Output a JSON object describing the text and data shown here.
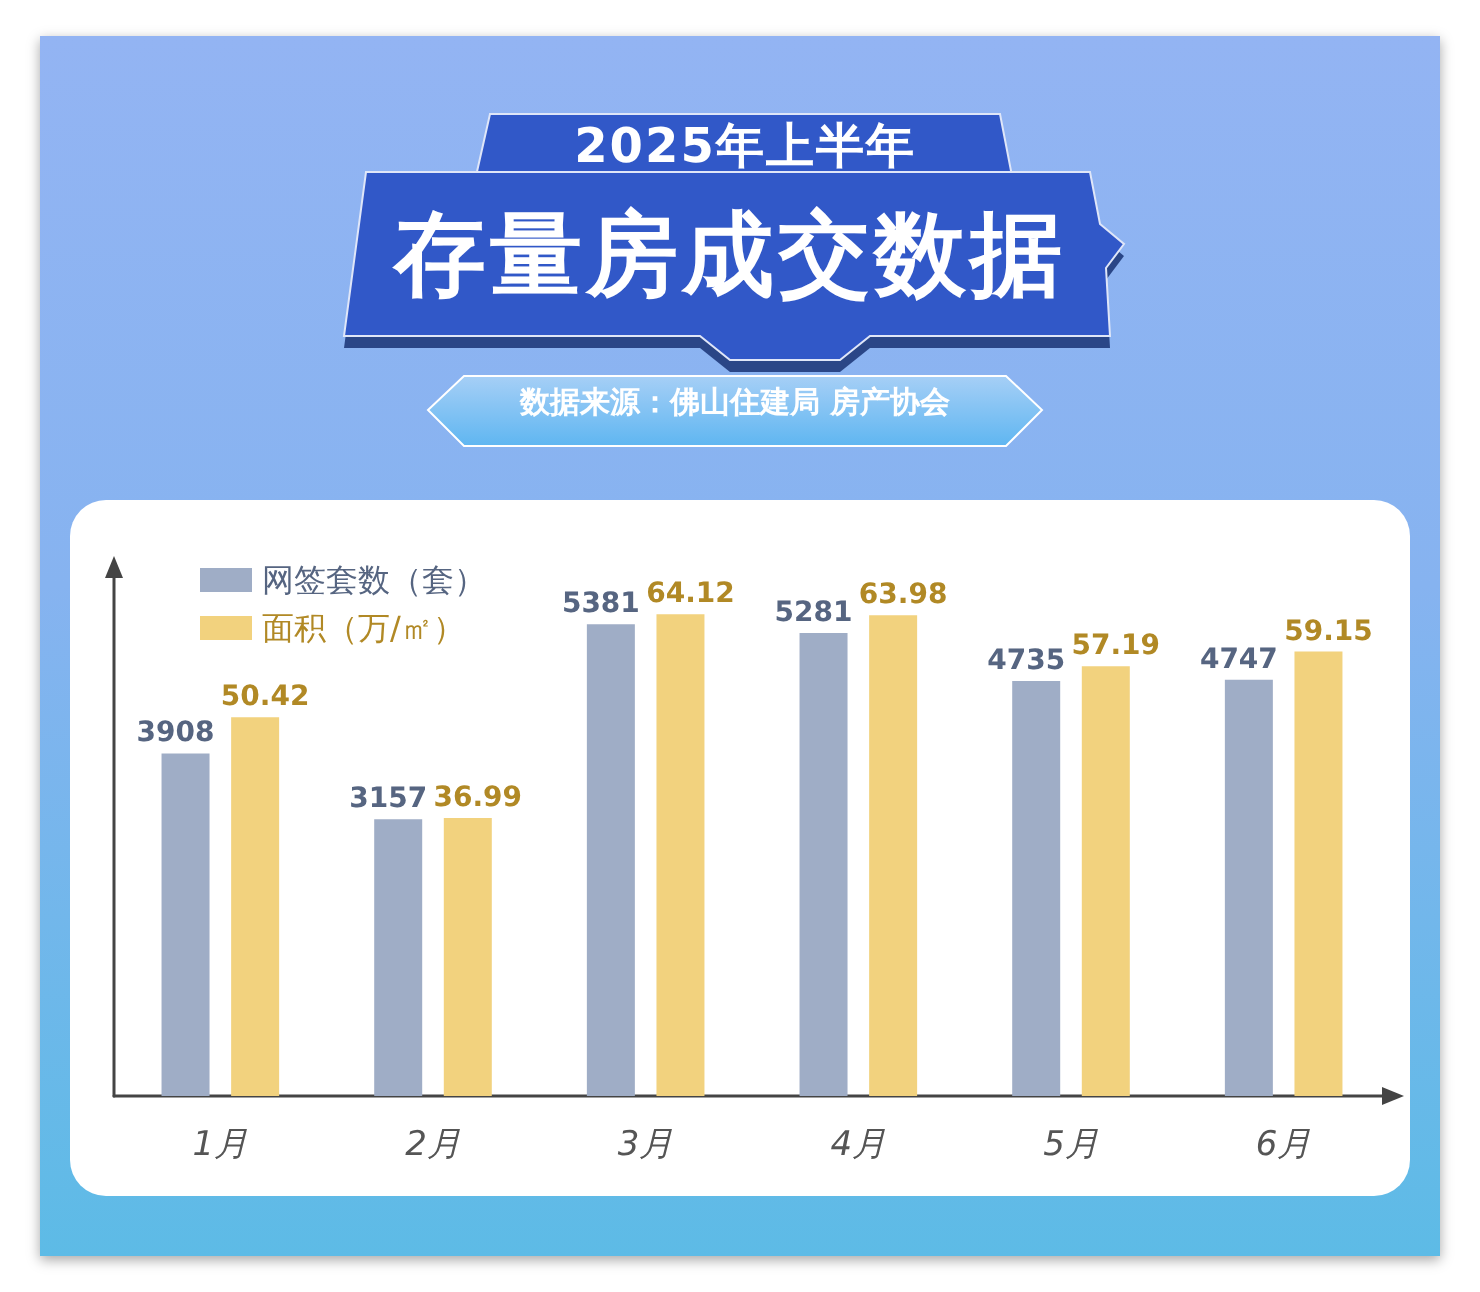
{
  "chart_data": {
    "type": "bar",
    "title": "存量房成交数据",
    "subtitle": "2025年上半年",
    "annotations": [
      "数据来源：佛山住建局 房产协会"
    ],
    "categories": [
      "1月",
      "2月",
      "3月",
      "4月",
      "5月",
      "6月"
    ],
    "series": [
      {
        "name": "网签套数（套）",
        "color": "#9fadc6",
        "values": [
          3908,
          3157,
          5381,
          5281,
          4735,
          4747
        ]
      },
      {
        "name": "面积（万/㎡）",
        "color": "#f2d27e",
        "axis": "y2",
        "values": [
          50.42,
          36.99,
          64.12,
          63.98,
          57.19,
          59.15
        ]
      }
    ],
    "data_labels": true,
    "legend": "top left",
    "grid": false,
    "tick_labels": "x"
  }
}
